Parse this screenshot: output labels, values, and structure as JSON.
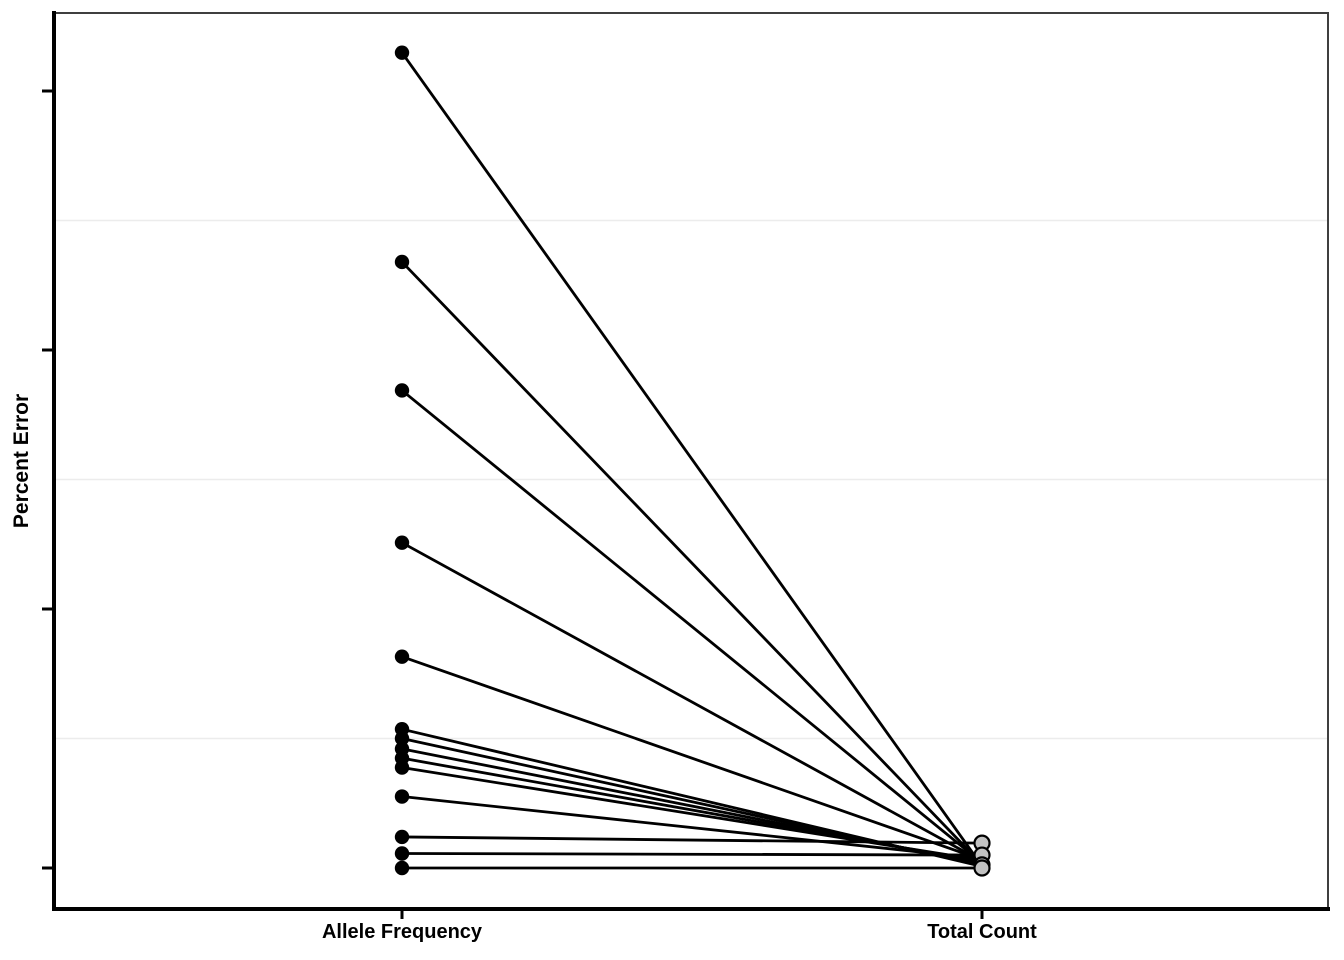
{
  "chart_data": {
    "type": "line",
    "subtype": "slopegraph (paired-point comparison, two categorical x positions)",
    "title": "",
    "xlabel": "",
    "ylabel": "Percent Error",
    "categories": [
      "Allele Frequency",
      "Total Count"
    ],
    "legend": "none",
    "y_axis": {
      "tick_values": [
        0,
        25,
        50,
        75
      ],
      "tick_labels_visible": false,
      "range": [
        -4,
        83
      ],
      "note": "y-axis shows tick marks but no numeric labels; values below are estimated in arbitrary percent-error units with 25 units per tick, 0 at the bottom tick"
    },
    "gridline_values": [
      12.5,
      37.5,
      62.5
    ],
    "pairs": [
      {
        "allele_frequency": 78.7,
        "total_count": 0.2
      },
      {
        "allele_frequency": 58.5,
        "total_count": 0.35
      },
      {
        "allele_frequency": 46.1,
        "total_count": 0.5
      },
      {
        "allele_frequency": 31.4,
        "total_count": 0.65
      },
      {
        "allele_frequency": 20.4,
        "total_count": 0.8
      },
      {
        "allele_frequency": 13.4,
        "total_count": 0.15
      },
      {
        "allele_frequency": 12.5,
        "total_count": 0.3
      },
      {
        "allele_frequency": 11.5,
        "total_count": 0.45
      },
      {
        "allele_frequency": 10.6,
        "total_count": 0.6
      },
      {
        "allele_frequency": 9.7,
        "total_count": 0.75
      },
      {
        "allele_frequency": 6.9,
        "total_count": 0.9
      },
      {
        "allele_frequency": 3.0,
        "total_count": 2.4
      },
      {
        "allele_frequency": 1.4,
        "total_count": 1.25
      },
      {
        "allele_frequency": 0.0,
        "total_count": 0.0
      }
    ],
    "right_visible_dots": [
      2.4,
      1.25,
      0.3,
      0.0
    ],
    "styles": {
      "left_point_color": "#000000",
      "right_point_fill": "#c2c2c2",
      "point_stroke": "#000000",
      "line_color": "#000000",
      "gridline_color": "#ececec",
      "panel_border_color": "#3f3f3f",
      "axis_color": "#000000",
      "background": "#ffffff"
    }
  }
}
